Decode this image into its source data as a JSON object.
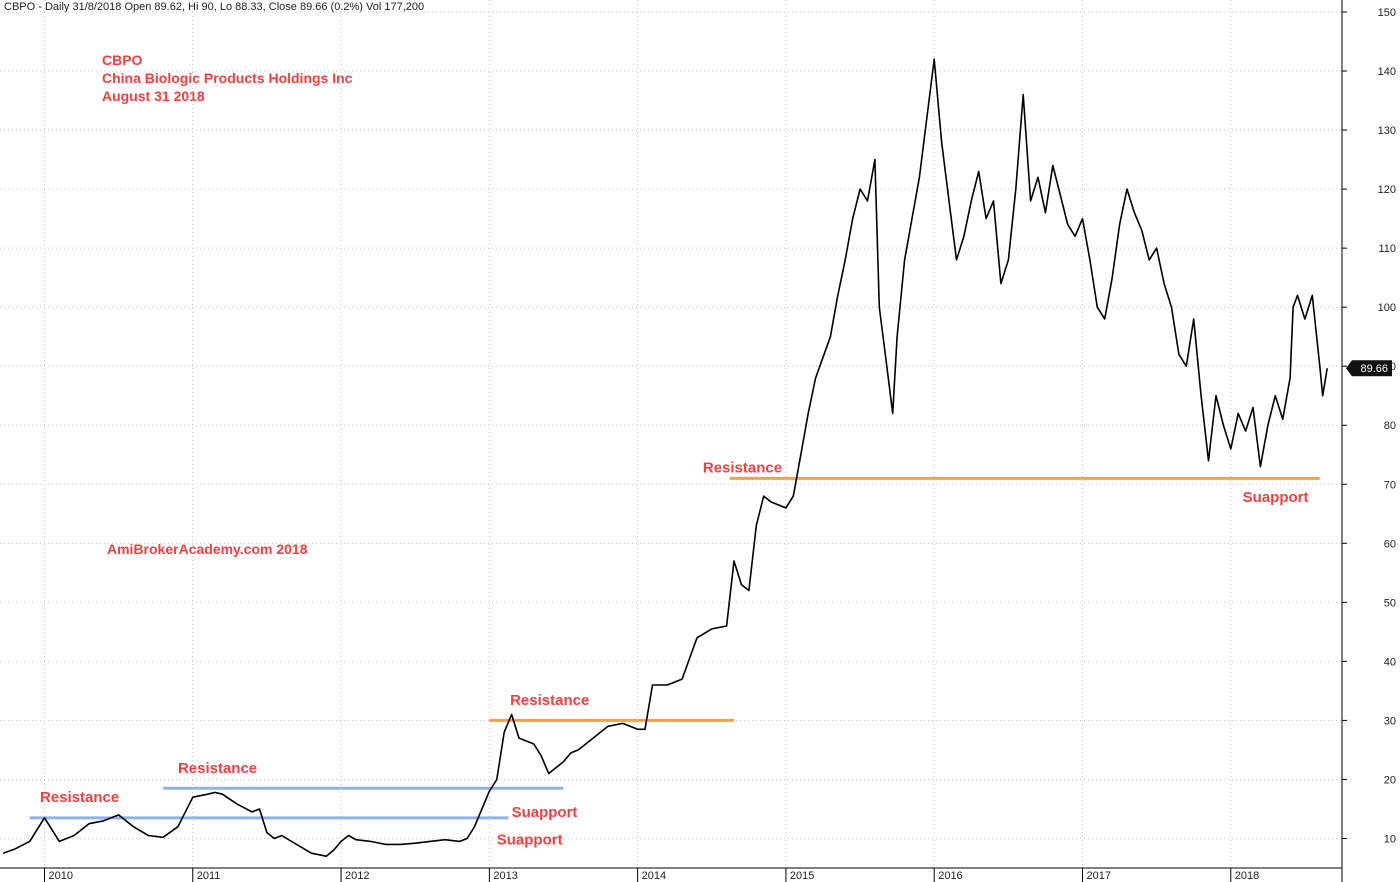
{
  "chart_data": {
    "type": "line",
    "header": "CBPO - Daily 31/8/2018 Open 89.62, Hi 90, Lo 88.33, Close 89.66 (0.2%) Vol 177,200",
    "title_lines": [
      "CBPO",
      "China Biologic Products Holdings Inc",
      "August 31 2018"
    ],
    "watermark": "AmiBrokerAcademy.com  2018",
    "xlim": [
      2009.7,
      2018.75
    ],
    "ylim": [
      5,
      150
    ],
    "x_ticks": [
      2010,
      2011,
      2012,
      2013,
      2014,
      2015,
      2016,
      2017,
      2018
    ],
    "y_ticks": [
      10,
      20,
      30,
      40,
      50,
      60,
      70,
      80,
      90,
      100,
      110,
      120,
      130,
      140,
      150
    ],
    "last_price": "89.66",
    "series": [
      {
        "points": [
          [
            2009.72,
            7.5
          ],
          [
            2009.8,
            8.2
          ],
          [
            2009.9,
            9.5
          ],
          [
            2010.0,
            13.5
          ],
          [
            2010.05,
            11.5
          ],
          [
            2010.1,
            9.5
          ],
          [
            2010.2,
            10.5
          ],
          [
            2010.3,
            12.5
          ],
          [
            2010.4,
            13.0
          ],
          [
            2010.5,
            14.0
          ],
          [
            2010.6,
            12.0
          ],
          [
            2010.7,
            10.5
          ],
          [
            2010.8,
            10.2
          ],
          [
            2010.9,
            12.0
          ],
          [
            2011.0,
            17.0
          ],
          [
            2011.1,
            17.5
          ],
          [
            2011.15,
            17.8
          ],
          [
            2011.2,
            17.5
          ],
          [
            2011.3,
            15.8
          ],
          [
            2011.4,
            14.5
          ],
          [
            2011.45,
            15.0
          ],
          [
            2011.5,
            11.0
          ],
          [
            2011.55,
            10.0
          ],
          [
            2011.6,
            10.5
          ],
          [
            2011.7,
            9.0
          ],
          [
            2011.8,
            7.5
          ],
          [
            2011.9,
            7.0
          ],
          [
            2011.95,
            8.0
          ],
          [
            2012.0,
            9.5
          ],
          [
            2012.05,
            10.5
          ],
          [
            2012.1,
            9.8
          ],
          [
            2012.2,
            9.5
          ],
          [
            2012.3,
            9.0
          ],
          [
            2012.4,
            9.0
          ],
          [
            2012.5,
            9.2
          ],
          [
            2012.6,
            9.5
          ],
          [
            2012.7,
            9.8
          ],
          [
            2012.8,
            9.5
          ],
          [
            2012.85,
            10.0
          ],
          [
            2012.9,
            12.0
          ],
          [
            2013.0,
            18.0
          ],
          [
            2013.05,
            20.0
          ],
          [
            2013.1,
            28.0
          ],
          [
            2013.15,
            31.0
          ],
          [
            2013.2,
            27.0
          ],
          [
            2013.3,
            26.0
          ],
          [
            2013.35,
            24.0
          ],
          [
            2013.4,
            21.0
          ],
          [
            2013.5,
            23.0
          ],
          [
            2013.55,
            24.5
          ],
          [
            2013.6,
            25.0
          ],
          [
            2013.7,
            27.0
          ],
          [
            2013.8,
            29.0
          ],
          [
            2013.9,
            29.5
          ],
          [
            2014.0,
            28.5
          ],
          [
            2014.05,
            28.5
          ],
          [
            2014.1,
            36.0
          ],
          [
            2014.2,
            36.0
          ],
          [
            2014.3,
            37.0
          ],
          [
            2014.4,
            44.0
          ],
          [
            2014.5,
            45.5
          ],
          [
            2014.6,
            46.0
          ],
          [
            2014.65,
            57.0
          ],
          [
            2014.7,
            53.0
          ],
          [
            2014.75,
            52.0
          ],
          [
            2014.8,
            63.0
          ],
          [
            2014.85,
            68.0
          ],
          [
            2014.9,
            67.0
          ],
          [
            2015.0,
            66.0
          ],
          [
            2015.05,
            68.0
          ],
          [
            2015.1,
            75.0
          ],
          [
            2015.15,
            82.0
          ],
          [
            2015.2,
            88.0
          ],
          [
            2015.3,
            95.0
          ],
          [
            2015.35,
            102.0
          ],
          [
            2015.4,
            108.0
          ],
          [
            2015.45,
            115.0
          ],
          [
            2015.5,
            120.0
          ],
          [
            2015.55,
            118.0
          ],
          [
            2015.6,
            125.0
          ],
          [
            2015.63,
            100.0
          ],
          [
            2015.68,
            90.0
          ],
          [
            2015.72,
            82.0
          ],
          [
            2015.75,
            95.0
          ],
          [
            2015.8,
            108.0
          ],
          [
            2015.85,
            115.0
          ],
          [
            2015.9,
            122.0
          ],
          [
            2015.95,
            132.0
          ],
          [
            2016.0,
            142.0
          ],
          [
            2016.05,
            128.0
          ],
          [
            2016.1,
            118.0
          ],
          [
            2016.15,
            108.0
          ],
          [
            2016.2,
            112.0
          ],
          [
            2016.25,
            118.0
          ],
          [
            2016.3,
            123.0
          ],
          [
            2016.35,
            115.0
          ],
          [
            2016.4,
            118.0
          ],
          [
            2016.45,
            104.0
          ],
          [
            2016.5,
            108.0
          ],
          [
            2016.55,
            120.0
          ],
          [
            2016.6,
            136.0
          ],
          [
            2016.65,
            118.0
          ],
          [
            2016.7,
            122.0
          ],
          [
            2016.75,
            116.0
          ],
          [
            2016.8,
            124.0
          ],
          [
            2016.85,
            119.0
          ],
          [
            2016.9,
            114.0
          ],
          [
            2016.95,
            112.0
          ],
          [
            2017.0,
            115.0
          ],
          [
            2017.05,
            108.0
          ],
          [
            2017.1,
            100.0
          ],
          [
            2017.15,
            98.0
          ],
          [
            2017.2,
            105.0
          ],
          [
            2017.25,
            114.0
          ],
          [
            2017.3,
            120.0
          ],
          [
            2017.35,
            116.0
          ],
          [
            2017.4,
            113.0
          ],
          [
            2017.45,
            108.0
          ],
          [
            2017.5,
            110.0
          ],
          [
            2017.55,
            104.0
          ],
          [
            2017.6,
            100.0
          ],
          [
            2017.65,
            92.0
          ],
          [
            2017.7,
            90.0
          ],
          [
            2017.75,
            98.0
          ],
          [
            2017.8,
            85.0
          ],
          [
            2017.85,
            74.0
          ],
          [
            2017.9,
            85.0
          ],
          [
            2017.95,
            80.0
          ],
          [
            2018.0,
            76.0
          ],
          [
            2018.05,
            82.0
          ],
          [
            2018.1,
            79.0
          ],
          [
            2018.15,
            83.0
          ],
          [
            2018.2,
            73.0
          ],
          [
            2018.25,
            80.0
          ],
          [
            2018.3,
            85.0
          ],
          [
            2018.35,
            81.0
          ],
          [
            2018.4,
            88.0
          ],
          [
            2018.42,
            100.0
          ],
          [
            2018.45,
            102.0
          ],
          [
            2018.5,
            98.0
          ],
          [
            2018.55,
            102.0
          ],
          [
            2018.6,
            90.0
          ],
          [
            2018.62,
            85.0
          ],
          [
            2018.65,
            89.66
          ]
        ]
      }
    ],
    "lines": [
      {
        "price": 13.5,
        "x0": 2009.9,
        "x1": 2013.13,
        "color": "#8fb3e8"
      },
      {
        "price": 18.5,
        "x0": 2010.8,
        "x1": 2013.5,
        "color": "#8fb3e8"
      },
      {
        "price": 30.0,
        "x0": 2013.0,
        "x1": 2014.65,
        "color": "#f5a04a"
      },
      {
        "price": 71.0,
        "x0": 2014.62,
        "x1": 2018.6,
        "color": "#f5a04a"
      }
    ],
    "annotations": [
      {
        "text": "Resistance",
        "x": 2009.97,
        "y": 16.2
      },
      {
        "text": "Resistance",
        "x": 2010.9,
        "y": 21.1
      },
      {
        "text": "Suapport",
        "x": 2013.05,
        "y": 9.0
      },
      {
        "text": "Suapport",
        "x": 2013.15,
        "y": 13.6
      },
      {
        "text": "Resistance",
        "x": 2013.14,
        "y": 32.6
      },
      {
        "text": "Resistance",
        "x": 2014.44,
        "y": 72.0
      },
      {
        "text": "Suapport",
        "x": 2018.08,
        "y": 67.0
      }
    ]
  }
}
